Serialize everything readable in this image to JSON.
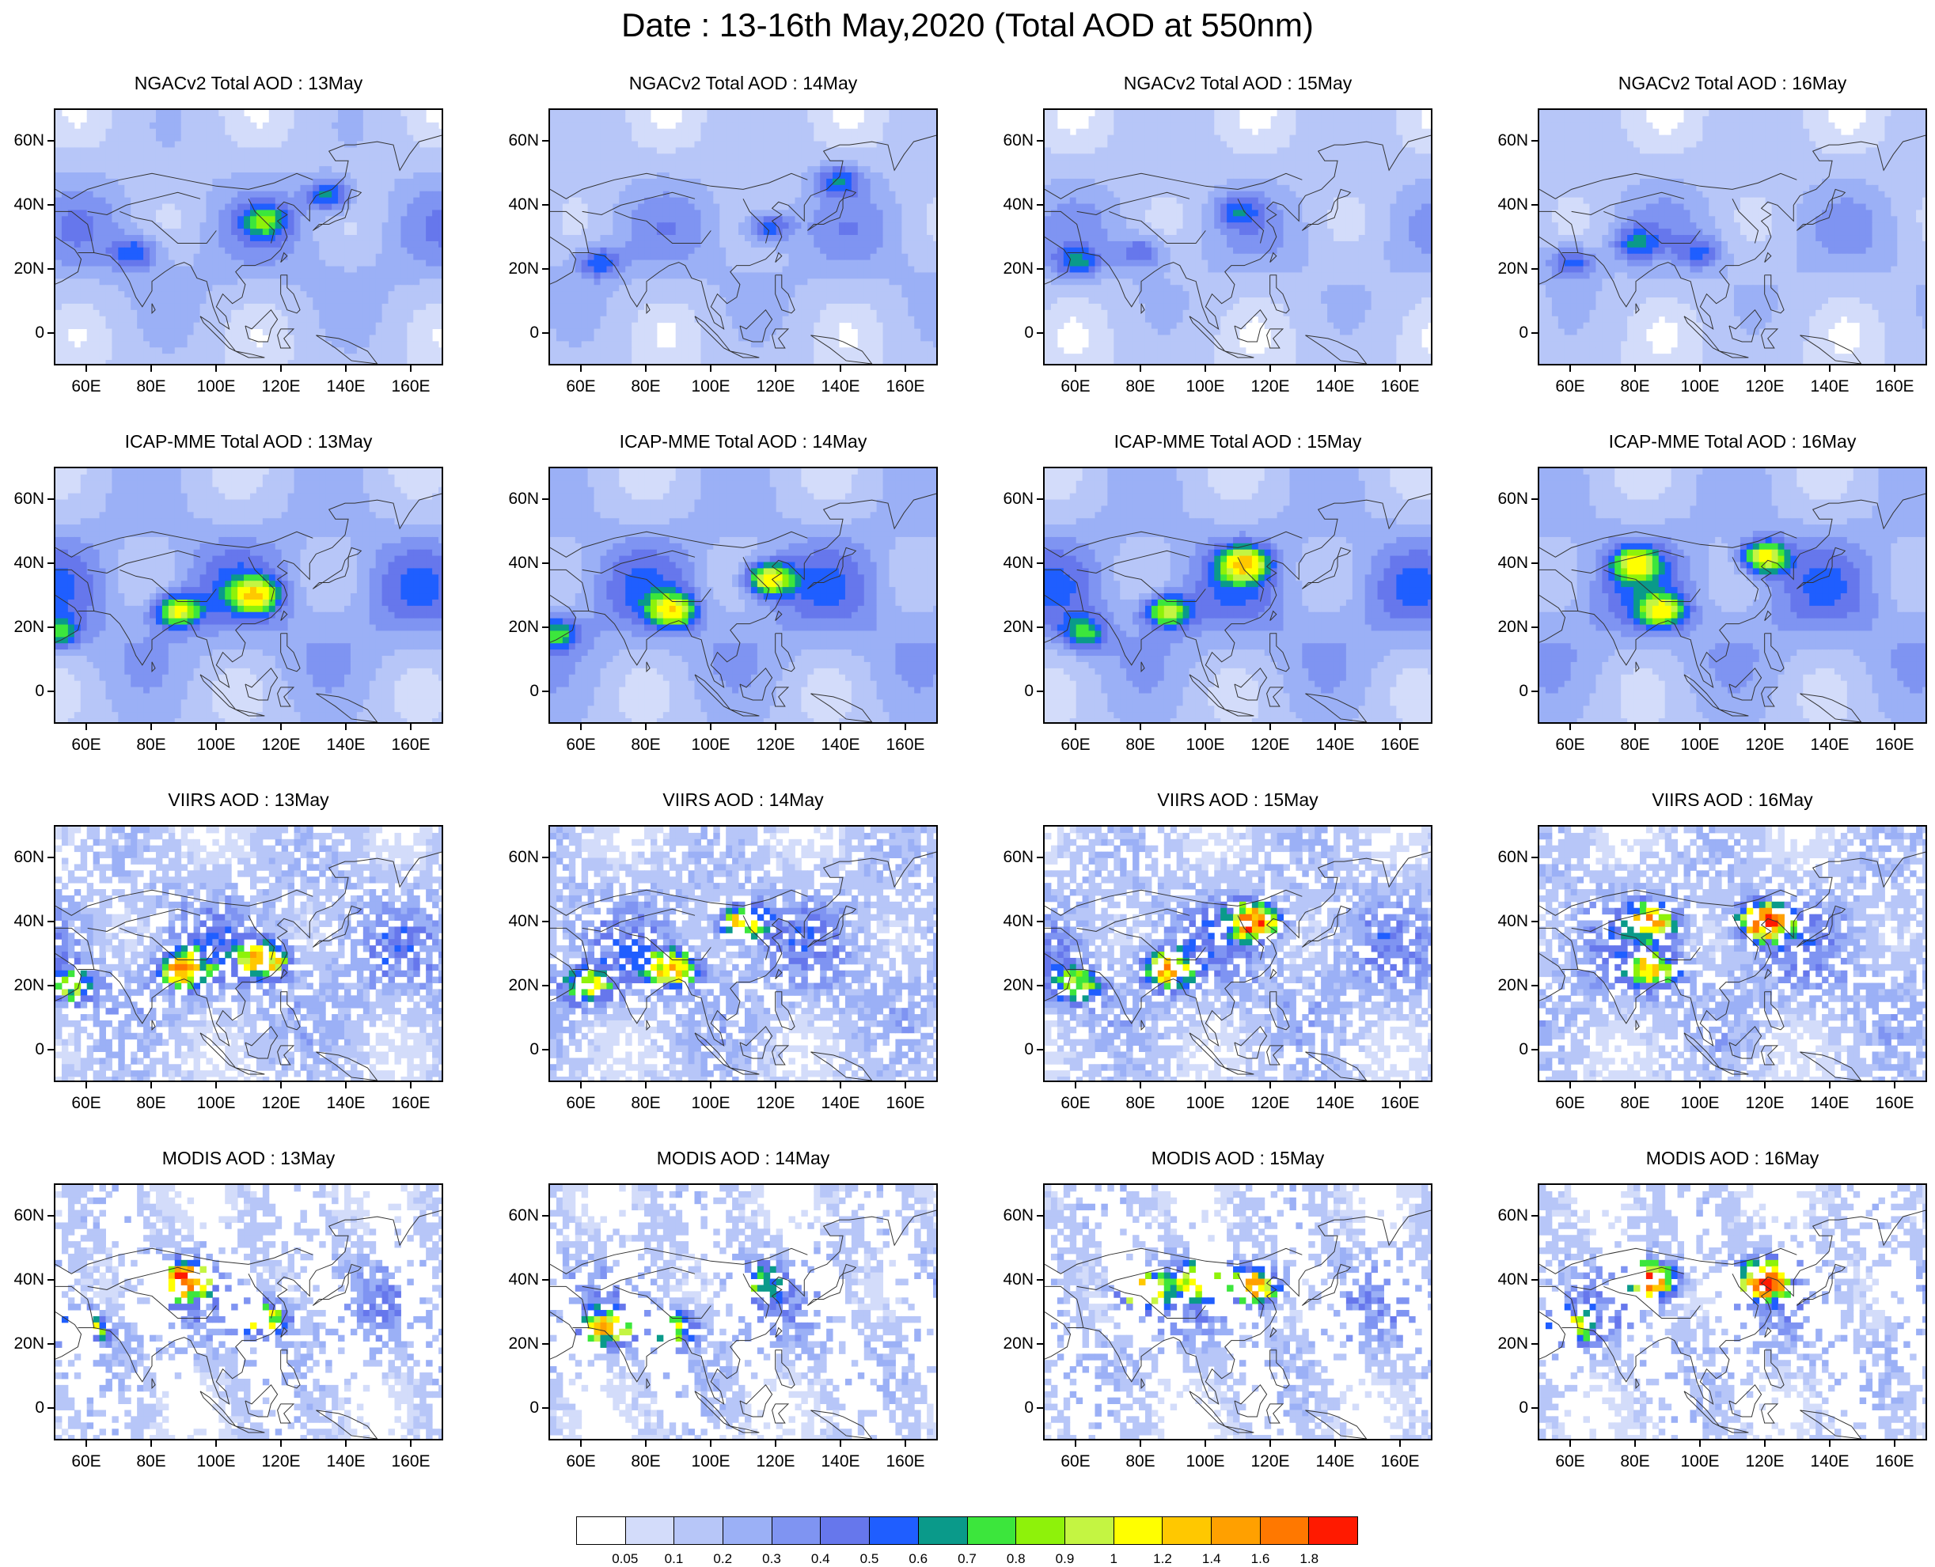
{
  "title": "Date : 13-16th May,2020 (Total AOD at 550nm)",
  "lat_labels": [
    "60N",
    "40N",
    "20N",
    "0"
  ],
  "lon_labels": [
    "60E",
    "80E",
    "100E",
    "120E",
    "140E",
    "160E"
  ],
  "lat_values": [
    60,
    40,
    20,
    0
  ],
  "lon_values": [
    60,
    80,
    100,
    120,
    140,
    160
  ],
  "map_extent": {
    "lon": [
      50,
      170
    ],
    "lat": [
      -10,
      70
    ]
  },
  "rows": [
    {
      "source": "NGACv2",
      "panels": [
        {
          "title": "NGACv2 Total AOD : 13May",
          "pattern": "smooth",
          "intensity": 0.35,
          "hotspots": [
            [
              115,
              35,
              0.45
            ],
            [
              135,
              43,
              0.5
            ],
            [
              75,
              25,
              0.4
            ]
          ]
        },
        {
          "title": "NGACv2 Total AOD : 14May",
          "pattern": "smooth",
          "intensity": 0.33,
          "hotspots": [
            [
              118,
              33,
              0.45
            ],
            [
              140,
              48,
              0.4
            ],
            [
              65,
              22,
              0.4
            ]
          ]
        },
        {
          "title": "NGACv2 Total AOD : 15May",
          "pattern": "smooth",
          "intensity": 0.3,
          "hotspots": [
            [
              60,
              22,
              0.4
            ],
            [
              80,
              25,
              0.35
            ],
            [
              110,
              38,
              0.3
            ]
          ]
        },
        {
          "title": "NGACv2 Total AOD : 16May",
          "pattern": "smooth",
          "intensity": 0.3,
          "hotspots": [
            [
              60,
              22,
              0.4
            ],
            [
              80,
              28,
              0.35
            ],
            [
              100,
              25,
              0.3
            ]
          ]
        }
      ]
    },
    {
      "source": "ICAP-MME",
      "panels": [
        {
          "title": "ICAP-MME Total AOD : 13May",
          "pattern": "smooth",
          "intensity": 0.45,
          "hotspots": [
            [
              88,
              25,
              0.8
            ],
            [
              112,
              30,
              0.8
            ],
            [
              50,
              18,
              0.5
            ]
          ]
        },
        {
          "title": "ICAP-MME Total AOD : 14May",
          "pattern": "smooth",
          "intensity": 0.45,
          "hotspots": [
            [
              118,
              35,
              0.9
            ],
            [
              88,
              25,
              0.8
            ],
            [
              52,
              18,
              0.5
            ]
          ]
        },
        {
          "title": "ICAP-MME Total AOD : 15May",
          "pattern": "smooth",
          "intensity": 0.45,
          "hotspots": [
            [
              112,
              40,
              0.9
            ],
            [
              88,
              25,
              0.75
            ],
            [
              62,
              18,
              0.5
            ]
          ]
        },
        {
          "title": "ICAP-MME Total AOD : 16May",
          "pattern": "smooth",
          "intensity": 0.45,
          "hotspots": [
            [
              120,
              42,
              0.9
            ],
            [
              88,
              25,
              0.7
            ],
            [
              80,
              40,
              0.7
            ]
          ]
        }
      ]
    },
    {
      "source": "VIIRS",
      "panels": [
        {
          "title": "VIIRS AOD : 13May",
          "pattern": "retrieval",
          "intensity": 0.35,
          "hotspots": [
            [
              90,
              25,
              1.2
            ],
            [
              115,
              28,
              1.2
            ],
            [
              55,
              20,
              0.7
            ]
          ]
        },
        {
          "title": "VIIRS AOD : 14May",
          "pattern": "retrieval",
          "intensity": 0.35,
          "hotspots": [
            [
              88,
              25,
              1.3
            ],
            [
              62,
              20,
              0.8
            ],
            [
              110,
              40,
              1.0
            ]
          ]
        },
        {
          "title": "VIIRS AOD : 15May",
          "pattern": "retrieval",
          "intensity": 0.35,
          "hotspots": [
            [
              115,
              40,
              1.6
            ],
            [
              88,
              25,
              1.2
            ],
            [
              60,
              20,
              0.8
            ]
          ]
        },
        {
          "title": "VIIRS AOD : 16May",
          "pattern": "retrieval",
          "intensity": 0.35,
          "hotspots": [
            [
              120,
              40,
              1.7
            ],
            [
              85,
              40,
              1.2
            ],
            [
              85,
              25,
              1.0
            ]
          ]
        }
      ]
    },
    {
      "source": "MODIS",
      "panels": [
        {
          "title": "MODIS AOD : 13May",
          "pattern": "swath",
          "intensity": 0.3,
          "hotspots": [
            [
              90,
              40,
              1.6
            ],
            [
              115,
              28,
              1.0
            ],
            [
              60,
              25,
              0.9
            ]
          ]
        },
        {
          "title": "MODIS AOD : 14May",
          "pattern": "swath",
          "intensity": 0.3,
          "hotspots": [
            [
              68,
              25,
              1.0
            ],
            [
              88,
              25,
              0.9
            ],
            [
              115,
              40,
              0.6
            ]
          ]
        },
        {
          "title": "MODIS AOD : 15May",
          "pattern": "swath",
          "intensity": 0.3,
          "hotspots": [
            [
              115,
              38,
              1.5
            ],
            [
              80,
              37,
              1.3
            ],
            [
              98,
              40,
              1.0
            ]
          ]
        },
        {
          "title": "MODIS AOD : 16May",
          "pattern": "swath",
          "intensity": 0.3,
          "hotspots": [
            [
              120,
              40,
              1.8
            ],
            [
              85,
              40,
              1.4
            ],
            [
              60,
              25,
              0.8
            ]
          ]
        }
      ]
    }
  ],
  "colorbar": {
    "labels": [
      "0.05",
      "0.1",
      "0.2",
      "0.3",
      "0.4",
      "0.5",
      "0.6",
      "0.7",
      "0.8",
      "0.9",
      "1",
      "1.2",
      "1.4",
      "1.6",
      "1.8"
    ],
    "levels": [
      0.05,
      0.1,
      0.2,
      0.3,
      0.4,
      0.5,
      0.6,
      0.7,
      0.8,
      0.9,
      1,
      1.2,
      1.4,
      1.6,
      1.8
    ],
    "colors": [
      "#ffffff",
      "#d3dcfa",
      "#b7c6f8",
      "#9bb0f6",
      "#7f94f2",
      "#6677ec",
      "#1f5eff",
      "#0a9a8a",
      "#3ce63c",
      "#8ef20a",
      "#c4f542",
      "#ffff00",
      "#ffc800",
      "#ffa000",
      "#ff7800",
      "#ff1a00"
    ]
  }
}
